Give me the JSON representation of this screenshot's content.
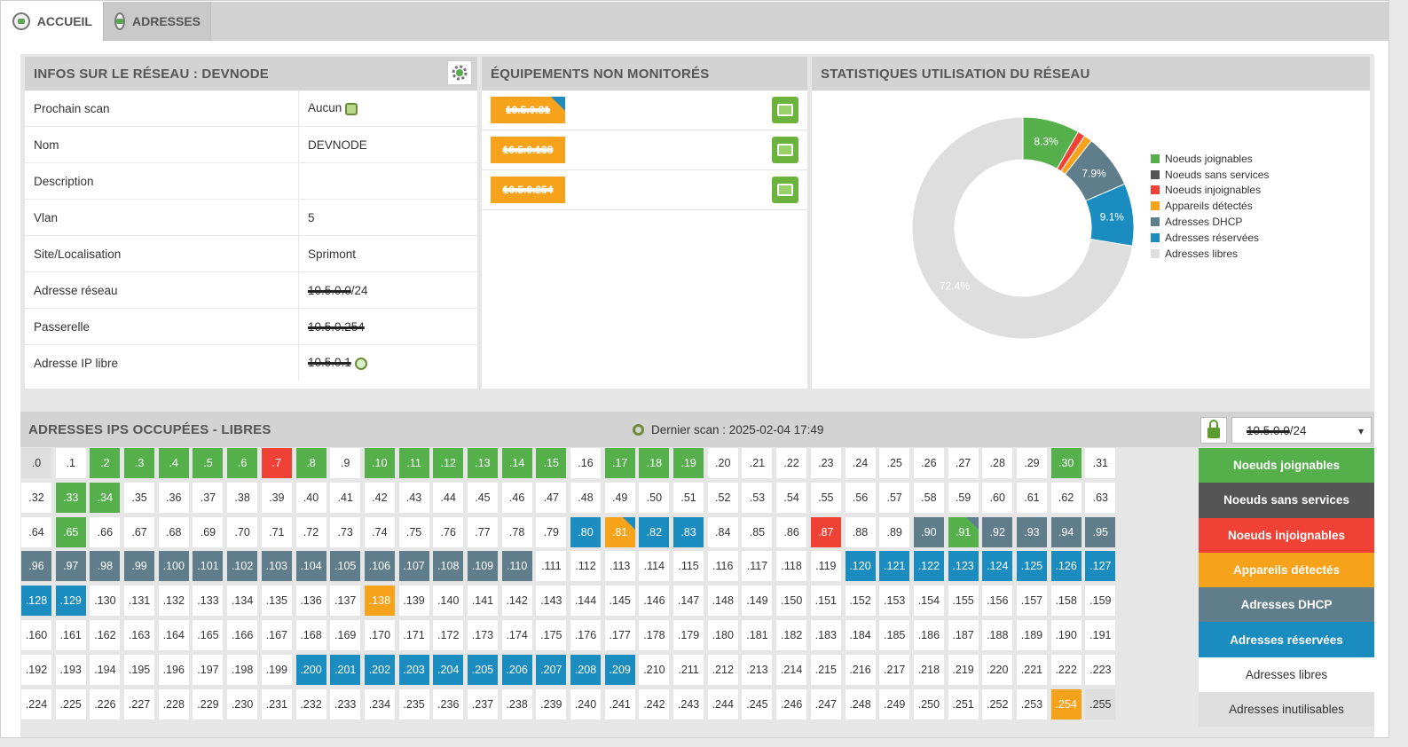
{
  "tabs": [
    {
      "label": "ACCUEIL",
      "icon": "home-globe-icon",
      "active": true
    },
    {
      "label": "ADRESSES",
      "icon": "network-icon",
      "active": false
    }
  ],
  "info_panel": {
    "title": "INFOS SUR LE RÉSEAU : DEVNODE",
    "rows": [
      {
        "label": "Prochain scan",
        "value": "Aucun"
      },
      {
        "label": "Nom",
        "value": "DEVNODE"
      },
      {
        "label": "Description",
        "value": ""
      },
      {
        "label": "Vlan",
        "value": "5"
      },
      {
        "label": "Site/Localisation",
        "value": "Sprimont"
      },
      {
        "label": "Adresse réseau",
        "value_redacted": "10.5.0.0",
        "value_suffix": "/24"
      },
      {
        "label": "Passerelle",
        "value_redacted": "10.5.0.254"
      },
      {
        "label": "Adresse IP libre",
        "value_redacted": "10.5.0.1"
      }
    ]
  },
  "equipment_panel": {
    "title": "ÉQUIPEMENTS NON MONITORÉS",
    "items": [
      "10.5.0.81",
      "10.5.0.138",
      "10.5.0.254"
    ]
  },
  "stats_panel": {
    "title": "STATISTIQUES UTILISATION DU RÉSEAU"
  },
  "chart_data": {
    "type": "pie",
    "donut": true,
    "categories": [
      "Noeuds joignables",
      "Noeuds sans services",
      "Noeuds injoignables",
      "Appareils détectés",
      "Adresses DHCP",
      "Adresses réservées",
      "Adresses libres"
    ],
    "values": [
      8.3,
      0,
      1.1,
      1.2,
      7.9,
      9.1,
      72.4
    ],
    "value_labels": [
      "8.3%",
      "",
      "",
      "",
      "7.9%",
      "9.1%",
      "72.4%"
    ],
    "colors": [
      "#55b04b",
      "#555555",
      "#ef4136",
      "#f7a21b",
      "#607d8b",
      "#1a8cbf",
      "#dedede"
    ],
    "legend_position": "right"
  },
  "ip_section": {
    "title": "ADRESSES IPS OCCUPÉES - LIBRES",
    "last_scan": "Dernier scan : 2025-02-04 17:49",
    "subnet_redacted": "10.5.0.0",
    "subnet_suffix": "/24",
    "reachable": [
      2,
      3,
      4,
      5,
      6,
      8,
      10,
      11,
      12,
      13,
      14,
      15,
      17,
      18,
      19,
      30,
      33,
      34,
      65
    ],
    "unreachable": [
      7,
      87
    ],
    "detected": [
      138,
      254
    ],
    "detected_with_blue_corner": [
      81
    ],
    "reachable_with_grey_corner": [
      91
    ],
    "dhcp": [
      90,
      92,
      93,
      94,
      95,
      96,
      97,
      98,
      99,
      100,
      101,
      102,
      103,
      104,
      105,
      106,
      107,
      108,
      109,
      110
    ],
    "reserved": [
      80,
      82,
      83,
      120,
      121,
      122,
      123,
      124,
      125,
      126,
      127,
      128,
      129,
      200,
      201,
      202,
      203,
      204,
      205,
      206,
      207,
      208,
      209
    ],
    "unusable": [
      0,
      255
    ]
  },
  "status_legend": [
    {
      "label": "Noeuds joignables",
      "bg": "#55b04b",
      "fg": "#ffffff"
    },
    {
      "label": "Noeuds sans services",
      "bg": "#555555",
      "fg": "#ffffff"
    },
    {
      "label": "Noeuds injoignables",
      "bg": "#ef4136",
      "fg": "#ffffff"
    },
    {
      "label": "Appareils détectés",
      "bg": "#f7a21b",
      "fg": "#ffffff"
    },
    {
      "label": "Adresses DHCP",
      "bg": "#607d8b",
      "fg": "#ffffff"
    },
    {
      "label": "Adresses réservées",
      "bg": "#1a8cbf",
      "fg": "#ffffff"
    },
    {
      "label": "Adresses libres",
      "bg": "#ffffff",
      "fg": "#333333"
    },
    {
      "label": "Adresses inutilisables",
      "bg": "#dedede",
      "fg": "#333333"
    }
  ]
}
